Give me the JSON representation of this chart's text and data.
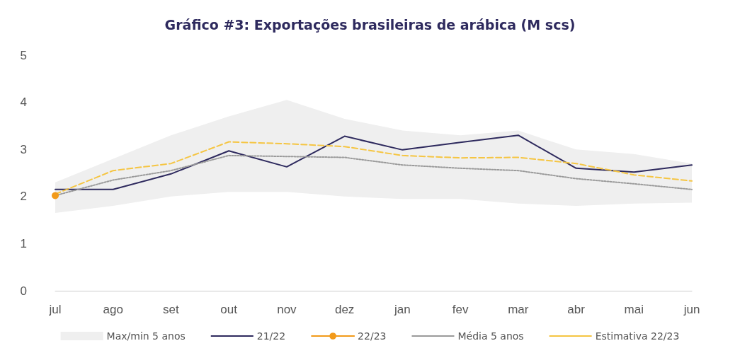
{
  "chart_data": {
    "type": "line",
    "title": "Gráfico #3: Exportações brasileiras de arábica (M scs)",
    "categories": [
      "jul",
      "ago",
      "set",
      "out",
      "nov",
      "dez",
      "jan",
      "fev",
      "mar",
      "abr",
      "mai",
      "jun"
    ],
    "ylim": [
      0,
      5
    ],
    "yticks": [
      0,
      1,
      2,
      3,
      4,
      5
    ],
    "grid": false,
    "legend": "bottom",
    "series": [
      {
        "name": "Max/min 5 anos",
        "type": "area",
        "color": "#efefef",
        "values": [
          null,
          null,
          null,
          null,
          null,
          null,
          null,
          null,
          null,
          null,
          null,
          null
        ],
        "lower": [
          1.65,
          1.8,
          2.0,
          2.1,
          2.1,
          2.0,
          1.95,
          1.95,
          1.85,
          1.8,
          1.85,
          1.87
        ],
        "upper": [
          2.3,
          2.8,
          3.3,
          3.7,
          4.05,
          3.65,
          3.4,
          3.3,
          3.4,
          3.0,
          2.9,
          2.7
        ]
      },
      {
        "name": "21/22",
        "color": "#2e2a5e",
        "marker": "none",
        "line_style": "solid",
        "values": [
          2.15,
          2.15,
          2.48,
          2.97,
          2.63,
          3.28,
          2.99,
          3.15,
          3.3,
          2.6,
          2.52,
          2.67
        ]
      },
      {
        "name": "22/23",
        "color": "#f29a1a",
        "marker": "circle",
        "line_style": "solid",
        "values": [
          2.02,
          null,
          null,
          null,
          null,
          null,
          null,
          null,
          null,
          null,
          null,
          null
        ]
      },
      {
        "name": "Média 5 anos",
        "color": "#9a9a9a",
        "marker": "none",
        "line_style": "dotted",
        "values": [
          2.02,
          2.35,
          2.55,
          2.87,
          2.85,
          2.83,
          2.67,
          2.6,
          2.55,
          2.38,
          2.27,
          2.15
        ]
      },
      {
        "name": "Estimativa 22/23",
        "color": "#f5c542",
        "marker": "none",
        "line_style": "dashed",
        "values": [
          2.05,
          2.55,
          2.7,
          3.16,
          3.12,
          3.06,
          2.87,
          2.82,
          2.83,
          2.7,
          2.46,
          2.33
        ]
      }
    ]
  }
}
